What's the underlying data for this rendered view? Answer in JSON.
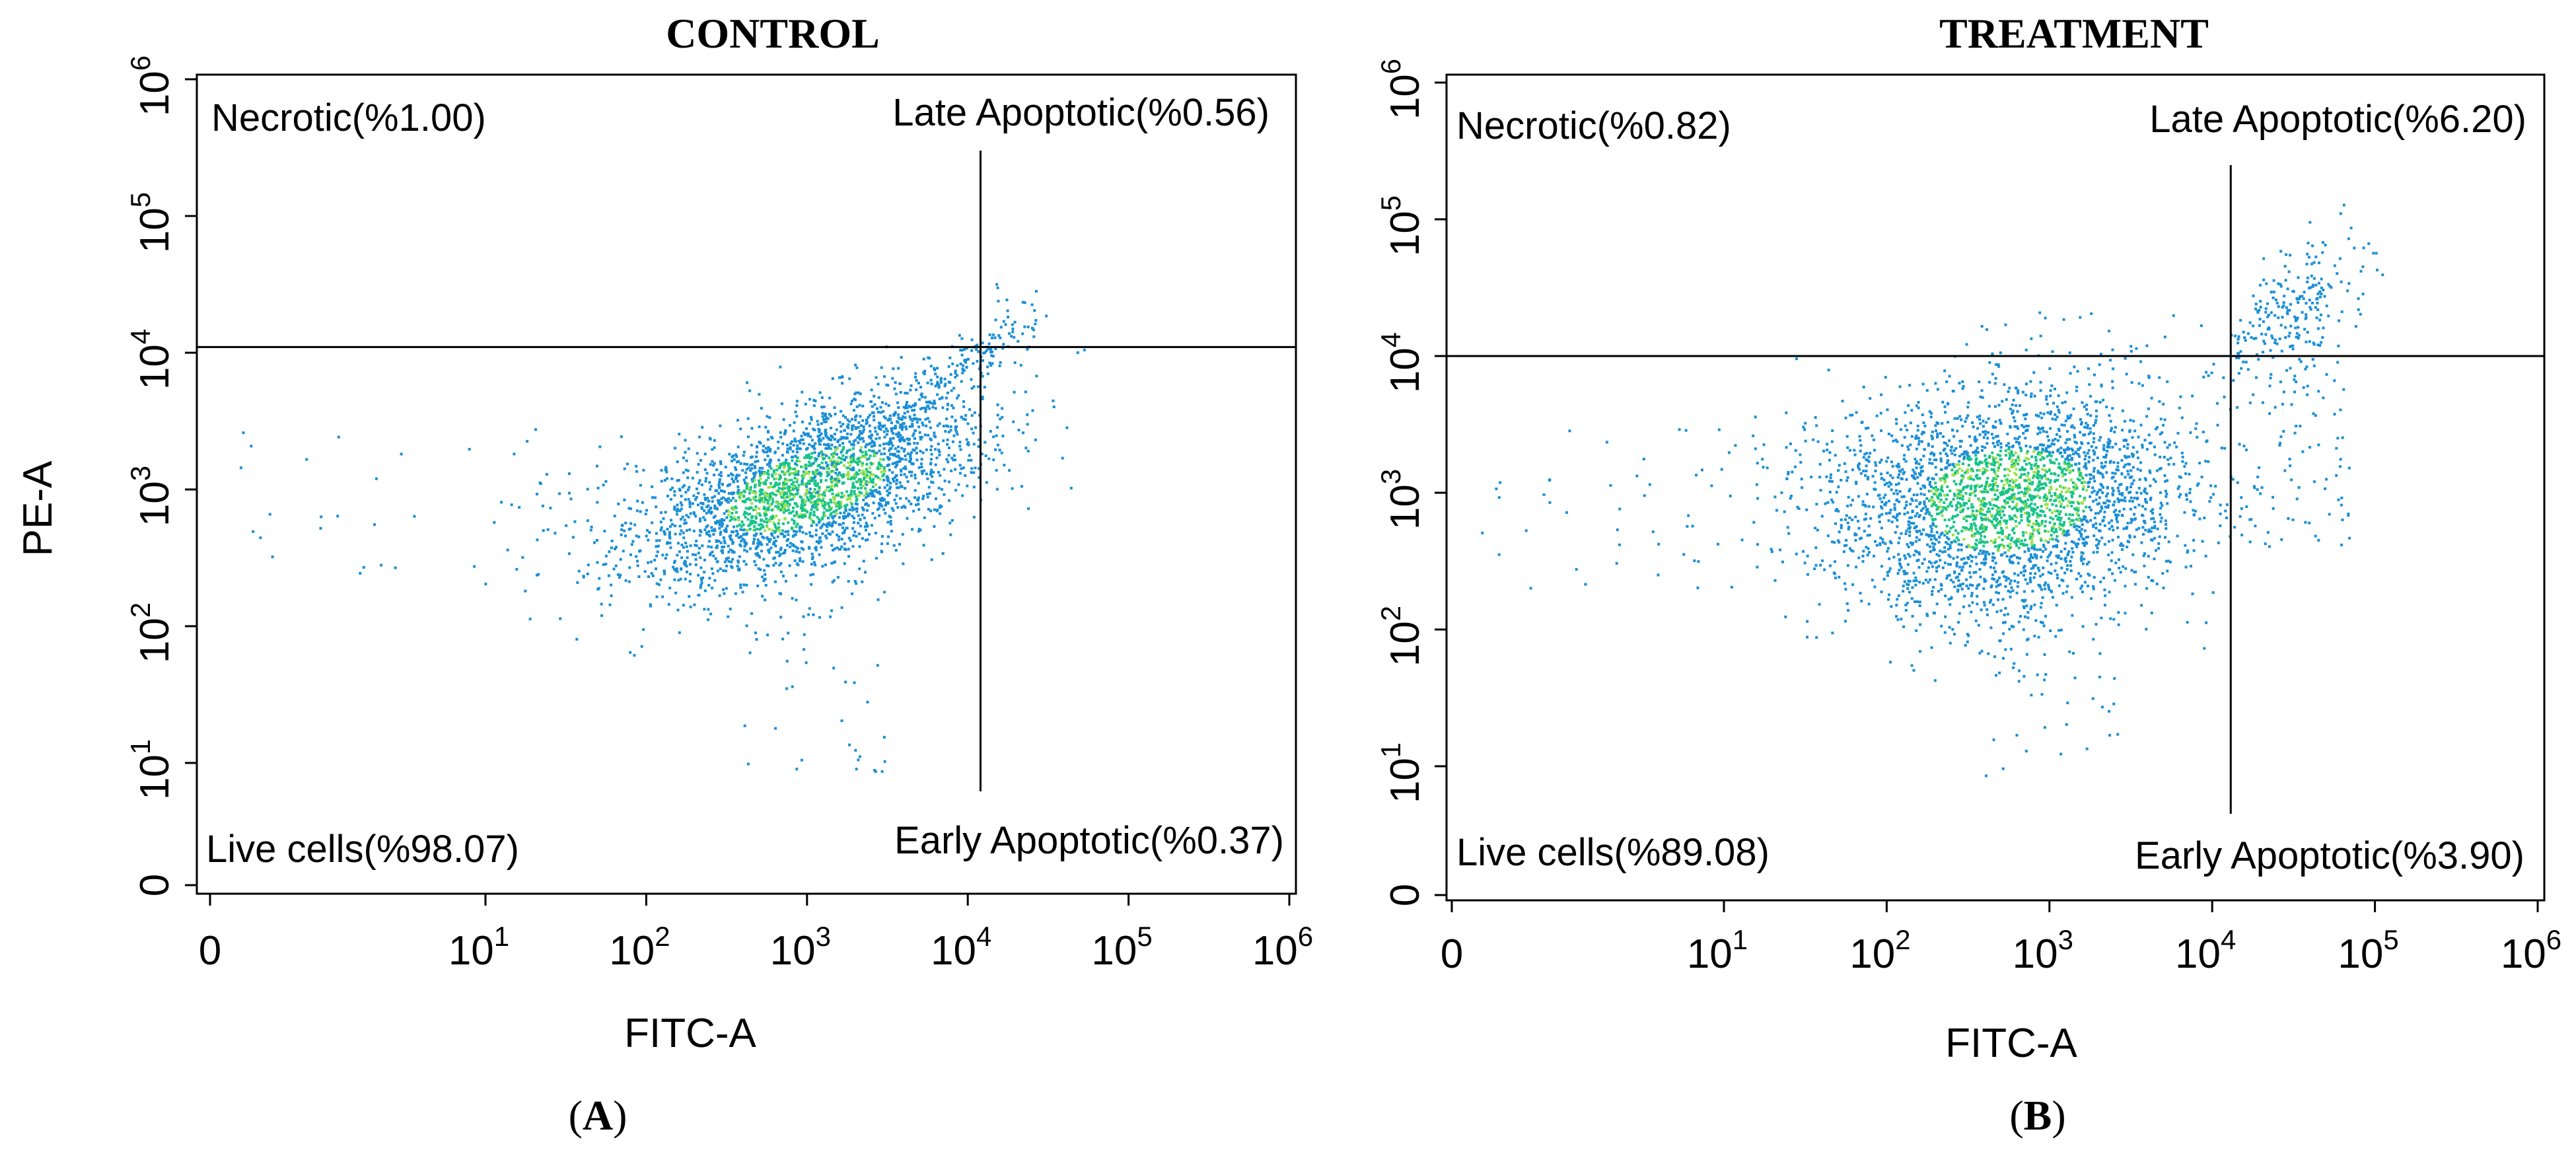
{
  "chart_data": [
    {
      "type": "scatter",
      "panel_id": "A",
      "title": "CONTROL",
      "xlabel": "FITC-A",
      "ylabel": "PE-A",
      "x_scale": "log",
      "y_scale": "log",
      "xlim": [
        0,
        1000000
      ],
      "ylim": [
        0,
        1000000
      ],
      "x_ticks": [
        {
          "value": 0,
          "base": "0",
          "exp": ""
        },
        {
          "value": 10,
          "base": "10",
          "exp": "1"
        },
        {
          "value": 100,
          "base": "10",
          "exp": "2"
        },
        {
          "value": 1000,
          "base": "10",
          "exp": "3"
        },
        {
          "value": 10000,
          "base": "10",
          "exp": "4"
        },
        {
          "value": 100000,
          "base": "10",
          "exp": "5"
        },
        {
          "value": 1000000,
          "base": "10",
          "exp": "6"
        }
      ],
      "y_ticks": [
        {
          "value": 0,
          "base": "0",
          "exp": ""
        },
        {
          "value": 10,
          "base": "10",
          "exp": "1"
        },
        {
          "value": 100,
          "base": "10",
          "exp": "2"
        },
        {
          "value": 1000,
          "base": "10",
          "exp": "3"
        },
        {
          "value": 10000,
          "base": "10",
          "exp": "4"
        },
        {
          "value": 100000,
          "base": "10",
          "exp": "5"
        },
        {
          "value": 1000000,
          "base": "10",
          "exp": "6"
        }
      ],
      "gates": {
        "x": 12000,
        "y": 11000
      },
      "quadrants": {
        "upper_left": "Necrotic(%1.00)",
        "upper_right": "Late Apoptotic(%0.56)",
        "lower_left": "Live cells(%98.07)",
        "lower_right": "Early Apoptotic(%0.37)"
      },
      "population": {
        "main_center": [
          3.0,
          3.0
        ],
        "main_spread": [
          0.55,
          0.35
        ],
        "main_count": 2600,
        "correlation": 0.55,
        "tail_to": [
          4.35,
          4.25
        ],
        "tail_count": 260,
        "sparse_left_count": 60,
        "late_count": 14
      },
      "colors": {
        "dot": "#1a8fd6",
        "dense": "#16c38a",
        "core": "#9be04a",
        "lines": "#000000"
      }
    },
    {
      "type": "scatter",
      "panel_id": "B",
      "title": "TREATMENT",
      "xlabel": "FITC-A",
      "ylabel": "",
      "x_scale": "log",
      "y_scale": "log",
      "xlim": [
        0,
        1000000
      ],
      "ylim": [
        0,
        1000000
      ],
      "x_ticks": [
        {
          "value": 0,
          "base": "0",
          "exp": ""
        },
        {
          "value": 10,
          "base": "10",
          "exp": "1"
        },
        {
          "value": 100,
          "base": "10",
          "exp": "2"
        },
        {
          "value": 1000,
          "base": "10",
          "exp": "3"
        },
        {
          "value": 10000,
          "base": "10",
          "exp": "4"
        },
        {
          "value": 100000,
          "base": "10",
          "exp": "5"
        },
        {
          "value": 1000000,
          "base": "10",
          "exp": "6"
        }
      ],
      "y_ticks": [
        {
          "value": 0,
          "base": "0",
          "exp": ""
        },
        {
          "value": 10,
          "base": "10",
          "exp": "1"
        },
        {
          "value": 100,
          "base": "10",
          "exp": "2"
        },
        {
          "value": 1000,
          "base": "10",
          "exp": "3"
        },
        {
          "value": 10000,
          "base": "10",
          "exp": "4"
        },
        {
          "value": 100000,
          "base": "10",
          "exp": "5"
        },
        {
          "value": 1000000,
          "base": "10",
          "exp": "6"
        }
      ],
      "gates": {
        "x": 13000,
        "y": 10000
      },
      "quadrants": {
        "upper_left": "Necrotic(%0.82)",
        "upper_right": "Late Apoptotic(%6.20)",
        "lower_left": "Live cells(%89.08)",
        "lower_right": "Early Apoptotic(%3.90)"
      },
      "population": {
        "main_center": [
          2.75,
          2.95
        ],
        "main_spread": [
          0.55,
          0.42
        ],
        "main_count": 3000,
        "correlation": 0.1,
        "late_center": [
          4.5,
          4.3
        ],
        "late_spread": [
          0.22,
          0.28
        ],
        "late_count": 240,
        "early_count": 80,
        "sparse_left_count": 70
      },
      "colors": {
        "dot": "#1a8fd6",
        "dense": "#16c38a",
        "core": "#9be04a",
        "lines": "#000000"
      }
    }
  ],
  "panels": [
    {
      "label_open": "(",
      "label_letter": "A",
      "label_close": ")"
    },
    {
      "label_open": "(",
      "label_letter": "B",
      "label_close": ")"
    }
  ]
}
